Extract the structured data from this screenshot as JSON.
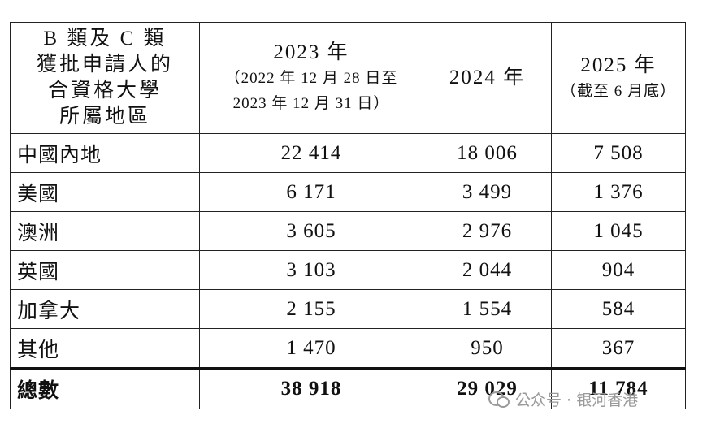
{
  "table": {
    "header": [
      [
        "B 類及 C 類",
        "獲批申請人的",
        "合資格大學",
        "所屬地區"
      ],
      [
        "2023 年",
        "（2022 年 12 月 28 日至",
        "2023 年 12 月 31 日）"
      ],
      [
        "2024 年"
      ],
      [
        "2025 年",
        "（截至 6 月底）"
      ]
    ],
    "rows": [
      [
        "中國內地",
        "22 414",
        "18 006",
        "7 508"
      ],
      [
        "美國",
        "6 171",
        "3 499",
        "1 376"
      ],
      [
        "澳洲",
        "3 605",
        "2 976",
        "1 045"
      ],
      [
        "英國",
        "3 103",
        "2 044",
        "904"
      ],
      [
        "加拿大",
        "2 155",
        "1 554",
        "584"
      ],
      [
        "其他",
        "1 470",
        "950",
        "367"
      ]
    ],
    "total": [
      "總數",
      "38 918",
      "29 029",
      "11 784"
    ]
  },
  "watermark": "公众号 · 银河香港"
}
